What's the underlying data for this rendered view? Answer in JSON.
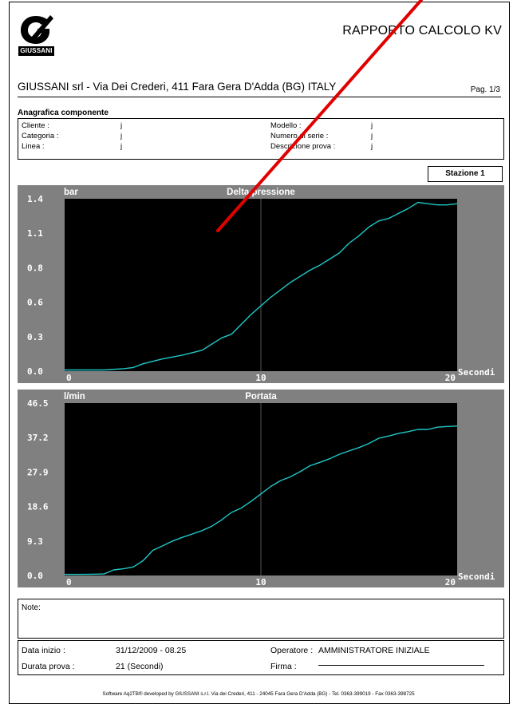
{
  "header": {
    "logo_text": "GIUSSANI",
    "report_title": "RAPPORTO CALCOLO KV",
    "company_line": "GIUSSANI srl - Via Dei Crederi, 411 Fara Gera D'Adda (BG) ITALY",
    "page_label": "Pag. 1/3"
  },
  "anagrafica": {
    "title": "Anagrafica componente",
    "left": [
      {
        "label": "Cliente :",
        "value": "j"
      },
      {
        "label": "Categoria :",
        "value": "j"
      },
      {
        "label": "Linea :",
        "value": "j"
      }
    ],
    "right": [
      {
        "label": "Modello :",
        "value": "j"
      },
      {
        "label": "Numero di serie :",
        "value": "j"
      },
      {
        "label": "Descrizione prova :",
        "value": "j"
      }
    ]
  },
  "stazione_label": "Stazione 1",
  "chart_data": [
    {
      "type": "line",
      "title": "Delta pressione",
      "ylabel": "bar",
      "xlabel": "Secondi",
      "xlim": [
        0,
        20
      ],
      "ylim": [
        0,
        1.4
      ],
      "x_ticks": [
        "0",
        "10",
        "20"
      ],
      "y_ticks": [
        "0.0",
        "0.3",
        "0.6",
        "0.8",
        "1.1",
        "1.4"
      ],
      "y_tick_values": [
        0.0,
        0.28,
        0.56,
        0.84,
        1.12,
        1.4
      ],
      "grid": true,
      "line_color": "#1ec8c8",
      "series": [
        {
          "x": [
            0,
            1,
            2,
            3,
            3.5,
            4,
            5,
            6,
            7,
            7.5,
            8,
            8.5,
            9,
            9.5,
            10,
            10.5,
            11,
            11.5,
            12,
            12.5,
            13,
            13.5,
            14,
            14.5,
            15,
            15.5,
            16,
            16.5,
            17,
            17.5,
            18,
            18.5,
            19,
            19.5,
            20
          ],
          "y": [
            0.01,
            0.01,
            0.01,
            0.02,
            0.03,
            0.06,
            0.1,
            0.13,
            0.17,
            0.22,
            0.27,
            0.3,
            0.38,
            0.46,
            0.53,
            0.6,
            0.66,
            0.72,
            0.77,
            0.82,
            0.86,
            0.91,
            0.96,
            1.04,
            1.1,
            1.17,
            1.22,
            1.24,
            1.28,
            1.32,
            1.37,
            1.36,
            1.35,
            1.35,
            1.36
          ]
        }
      ]
    },
    {
      "type": "line",
      "title": "Portata",
      "ylabel": "l/min",
      "xlabel": "Secondi",
      "xlim": [
        0,
        20
      ],
      "ylim": [
        0,
        46.5
      ],
      "x_ticks": [
        "0",
        "10",
        "20"
      ],
      "y_ticks": [
        "0.0",
        "9.3",
        "18.6",
        "27.9",
        "37.2",
        "46.5"
      ],
      "y_tick_values": [
        0.0,
        9.3,
        18.6,
        27.9,
        37.2,
        46.5
      ],
      "grid": true,
      "line_color": "#1ec8c8",
      "series": [
        {
          "x": [
            0,
            1,
            2,
            2.5,
            3,
            3.5,
            4,
            4.5,
            5,
            5.5,
            6,
            6.5,
            7,
            7.5,
            8,
            8.5,
            9,
            9.5,
            10,
            10.5,
            11,
            11.5,
            12,
            12.5,
            13,
            13.5,
            14,
            14.5,
            15,
            15.5,
            16,
            16.5,
            17,
            17.5,
            18,
            18.5,
            19,
            19.5,
            20
          ],
          "y": [
            0.3,
            0.3,
            0.4,
            1.5,
            1.8,
            2.3,
            4.0,
            6.8,
            8.0,
            9.3,
            10.3,
            11.2,
            12.1,
            13.3,
            15.0,
            17.0,
            18.2,
            20.0,
            22.0,
            24.0,
            25.6,
            26.6,
            28.0,
            29.6,
            30.5,
            31.5,
            32.7,
            33.6,
            34.5,
            35.6,
            37.0,
            37.6,
            38.3,
            38.8,
            39.4,
            39.4,
            40.0,
            40.2,
            40.3
          ]
        }
      ]
    }
  ],
  "note_label": "Note:",
  "info": {
    "data_inizio_label": "Data inizio :",
    "data_inizio_value": "31/12/2009 - 08.25",
    "operatore_label": "Operatore :",
    "operatore_value": "AMMINISTRATORE INIZIALE",
    "durata_label": "Durata prova :",
    "durata_value": "21  (Secondi)",
    "firma_label": "Firma :"
  },
  "footer_text": "Software Aq2TB® developed by GIUSSANI s.r.l. Via dei Crederi, 411 - 24045 Fara Gera D'Adda (BG) - Tel. 0363-399019 - Fax 0363-398725"
}
